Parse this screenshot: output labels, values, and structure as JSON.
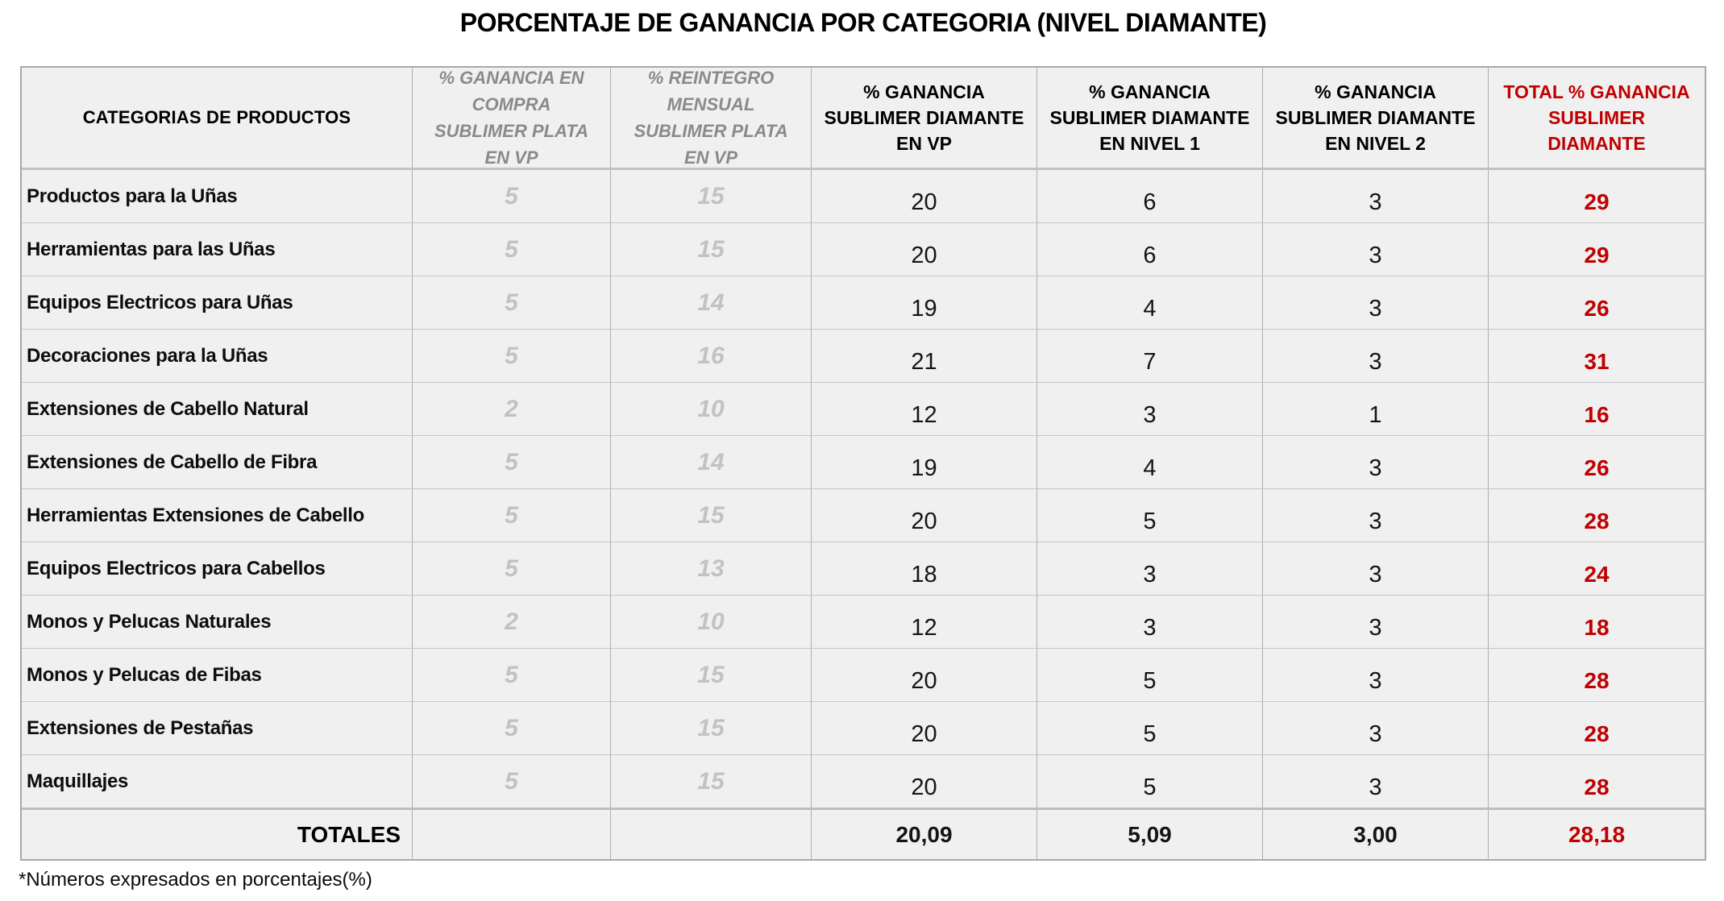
{
  "page": {
    "title": "PORCENTAJE DE GANANCIA POR CATEGORIA (NIVEL DIAMANTE)",
    "footnote": "*Números expresados en porcentajes(%)"
  },
  "colors": {
    "accent_red": "#c00000",
    "cell_background": "#f0f0f0",
    "header_gray_text": "#8a8a8a",
    "value_gray_text": "#c2c2c2",
    "border_gray": "#aeaeae"
  },
  "table": {
    "columns": [
      {
        "id": "category",
        "label": "CATEGORIAS DE PRODUCTOS",
        "style": "black-bold"
      },
      {
        "id": "plata_compra",
        "label": "% GANANCIA EN COMPRA  SUBLIMER PLATA EN VP",
        "style": "gray-italic"
      },
      {
        "id": "plata_reintegro",
        "label": "% REINTEGRO MENSUAL  SUBLIMER PLATA EN VP",
        "style": "gray-italic"
      },
      {
        "id": "diamante_vp",
        "label": "% GANANCIA SUBLIMER DIAMANTE EN VP",
        "style": "black-bold"
      },
      {
        "id": "diamante_n1",
        "label": "% GANANCIA SUBLIMER DIAMANTE EN NIVEL 1",
        "style": "black-bold"
      },
      {
        "id": "diamante_n2",
        "label": "% GANANCIA SUBLIMER DIAMANTE EN NIVEL 2",
        "style": "black-bold"
      },
      {
        "id": "total",
        "label": "TOTAL % GANANCIA SUBLIMER DIAMANTE",
        "style": "red-bold"
      }
    ],
    "rows": [
      {
        "category": "Productos para la Uñas",
        "values": [
          "5",
          "15",
          "20",
          "6",
          "3",
          "29"
        ]
      },
      {
        "category": "Herramientas para las Uñas",
        "values": [
          "5",
          "15",
          "20",
          "6",
          "3",
          "29"
        ]
      },
      {
        "category": "Equipos Electricos para Uñas",
        "values": [
          "5",
          "14",
          "19",
          "4",
          "3",
          "26"
        ]
      },
      {
        "category": "Decoraciones para la Uñas",
        "values": [
          "5",
          "16",
          "21",
          "7",
          "3",
          "31"
        ]
      },
      {
        "category": "Extensiones de Cabello Natural",
        "values": [
          "2",
          "10",
          "12",
          "3",
          "1",
          "16"
        ]
      },
      {
        "category": "Extensiones de Cabello de Fibra",
        "values": [
          "5",
          "14",
          "19",
          "4",
          "3",
          "26"
        ]
      },
      {
        "category": "Herramientas Extensiones de Cabello",
        "values": [
          "5",
          "15",
          "20",
          "5",
          "3",
          "28"
        ]
      },
      {
        "category": "Equipos Electricos para Cabellos",
        "values": [
          "5",
          "13",
          "18",
          "3",
          "3",
          "24"
        ]
      },
      {
        "category": "Monos y Pelucas Naturales",
        "values": [
          "2",
          "10",
          "12",
          "3",
          "3",
          "18"
        ]
      },
      {
        "category": "Monos y Pelucas de Fibas",
        "values": [
          "5",
          "15",
          "20",
          "5",
          "3",
          "28"
        ]
      },
      {
        "category": "Extensiones de Pestañas",
        "values": [
          "5",
          "15",
          "20",
          "5",
          "3",
          "28"
        ]
      },
      {
        "category": "Maquillajes",
        "values": [
          "5",
          "15",
          "20",
          "5",
          "3",
          "28"
        ]
      }
    ],
    "totals": {
      "label": "TOTALES",
      "values": [
        "",
        "",
        "20,09",
        "5,09",
        "3,00",
        "28,18"
      ]
    }
  }
}
